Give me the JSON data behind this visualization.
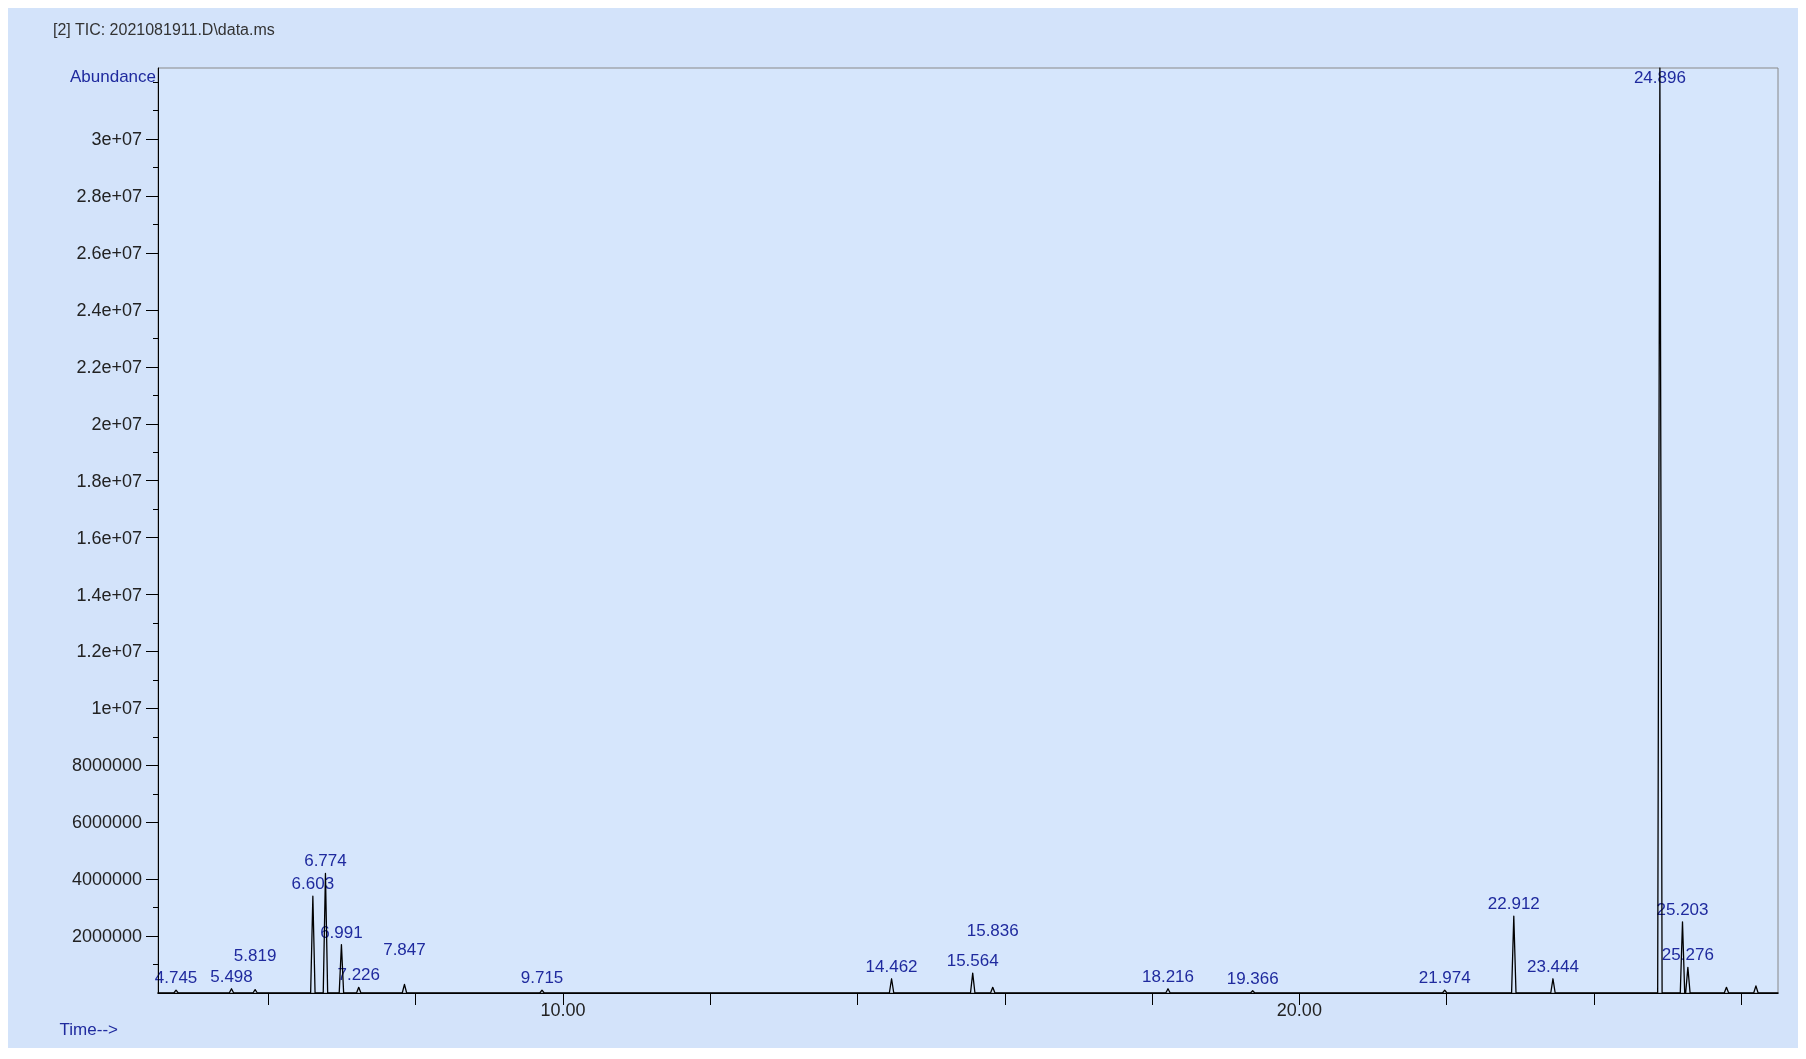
{
  "chart_data": {
    "type": "line",
    "title": "[2] TIC: 2021081911.D\\data.ms",
    "xlabel": "Time-->",
    "ylabel": "Abundance",
    "x": [
      4.5,
      4.715,
      4.745,
      4.775,
      5.468,
      5.498,
      5.528,
      5.789,
      5.819,
      5.849,
      6.573,
      6.603,
      6.633,
      6.744,
      6.774,
      6.804,
      6.961,
      6.991,
      7.021,
      7.196,
      7.226,
      7.256,
      7.817,
      7.847,
      7.877,
      9.685,
      9.715,
      9.745,
      14.432,
      14.462,
      14.492,
      15.534,
      15.564,
      15.594,
      15.806,
      15.836,
      15.866,
      18.186,
      18.216,
      18.246,
      19.336,
      19.366,
      19.396,
      21.944,
      21.974,
      22.004,
      22.882,
      22.912,
      22.942,
      23.414,
      23.444,
      23.474,
      24.866,
      24.896,
      24.926,
      25.173,
      25.203,
      25.233,
      25.246,
      25.276,
      25.306,
      25.77,
      25.8,
      25.83,
      26.17,
      26.2,
      26.23,
      26.5
    ],
    "series": [
      {
        "color": "#000000",
        "values": [
          0,
          0,
          100000,
          0,
          0,
          150000,
          0,
          0,
          120000,
          0,
          0,
          3400000,
          0,
          0,
          4200000,
          0,
          0,
          1700000,
          0,
          0,
          200000,
          0,
          0,
          300000,
          0,
          0,
          100000,
          0,
          0,
          500000,
          0,
          0,
          700000,
          0,
          0,
          200000,
          0,
          0,
          150000,
          0,
          0,
          80000,
          0,
          0,
          100000,
          0,
          0,
          2700000,
          0,
          0,
          500000,
          0,
          0,
          32500000,
          0,
          0,
          2500000,
          0,
          0,
          900000,
          0,
          0,
          200000,
          0,
          0,
          250000,
          0,
          0
        ]
      }
    ],
    "xlim": [
      4.5,
      26.5
    ],
    "xticks": [
      {
        "value": 6,
        "label": null
      },
      {
        "value": 8,
        "label": null
      },
      {
        "value": 10,
        "label": "10.00"
      },
      {
        "value": 12,
        "label": null
      },
      {
        "value": 14,
        "label": null
      },
      {
        "value": 16,
        "label": null
      },
      {
        "value": 18,
        "label": null
      },
      {
        "value": 20,
        "label": "20.00"
      },
      {
        "value": 22,
        "label": null
      },
      {
        "value": 24,
        "label": null
      },
      {
        "value": 26,
        "label": null
      }
    ],
    "ylim": [
      0,
      32500000
    ],
    "yticks": [
      2000000,
      4000000,
      6000000,
      8000000,
      {
        "value": 10000000,
        "label": "1e+07"
      },
      {
        "value": 12000000,
        "label": "1.2e+07"
      },
      {
        "value": 14000000,
        "label": "1.4e+07"
      },
      {
        "value": 16000000,
        "label": "1.6e+07"
      },
      {
        "value": 18000000,
        "label": "1.8e+07"
      },
      {
        "value": 20000000,
        "label": "2e+07"
      },
      {
        "value": 22000000,
        "label": "2.2e+07"
      },
      {
        "value": 24000000,
        "label": "2.4e+07"
      },
      {
        "value": 26000000,
        "label": "2.6e+07"
      },
      {
        "value": 28000000,
        "label": "2.8e+07"
      },
      {
        "value": 30000000,
        "label": "3e+07"
      }
    ],
    "annotations": [
      {
        "text": "4.745",
        "x": 4.745,
        "y": 100000
      },
      {
        "text": "5.498",
        "x": 5.498,
        "y": 150000
      },
      {
        "text": "5.819",
        "x": 5.819,
        "y": 120000
      },
      {
        "text": "6.603",
        "x": 6.603,
        "y": 3400000
      },
      {
        "text": "6.774",
        "x": 6.774,
        "y": 4200000
      },
      {
        "text": "6.991",
        "x": 6.991,
        "y": 1700000
      },
      {
        "text": "7.226",
        "x": 7.226,
        "y": 200000
      },
      {
        "text": "7.847",
        "x": 7.847,
        "y": 300000
      },
      {
        "text": "9.715",
        "x": 9.715,
        "y": 100000
      },
      {
        "text": "14.462",
        "x": 14.462,
        "y": 500000
      },
      {
        "text": "15.564",
        "x": 15.564,
        "y": 700000
      },
      {
        "text": "15.836",
        "x": 15.836,
        "y": 200000
      },
      {
        "text": "18.216",
        "x": 18.216,
        "y": 150000
      },
      {
        "text": "19.366",
        "x": 19.366,
        "y": 80000
      },
      {
        "text": "21.974",
        "x": 21.974,
        "y": 100000
      },
      {
        "text": "22.912",
        "x": 22.912,
        "y": 2700000
      },
      {
        "text": "23.444",
        "x": 23.444,
        "y": 500000
      },
      {
        "text": "24.896",
        "x": 24.896,
        "y": 32500000
      },
      {
        "text": "25.203",
        "x": 25.203,
        "y": 2500000
      },
      {
        "text": "25.276",
        "x": 25.276,
        "y": 900000
      }
    ],
    "grid": false,
    "marker": "none",
    "line_style": "solid"
  }
}
